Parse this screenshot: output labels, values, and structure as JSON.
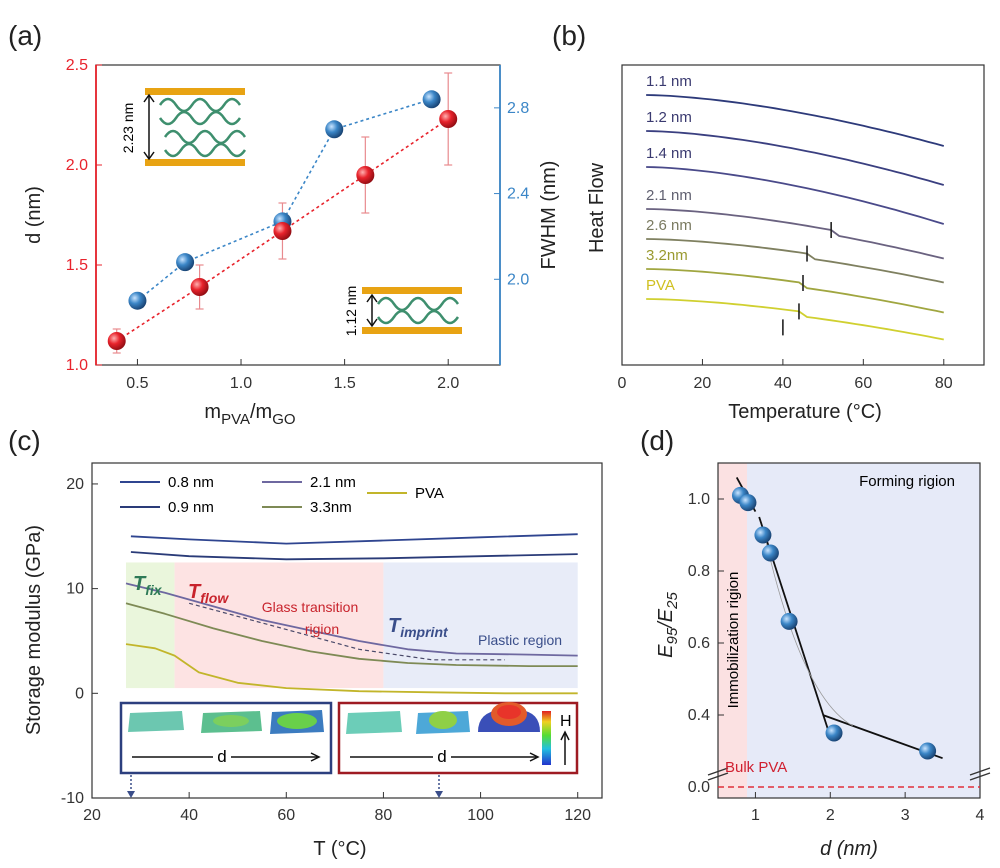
{
  "panels": {
    "a": "(a)",
    "b": "(b)",
    "c": "(c)",
    "d": "(d)"
  },
  "colors": {
    "red": "#e8232c",
    "blue": "#3b86c7",
    "gold": "#e8a313",
    "green": "#3e8f6e",
    "navy": "#2c3f7e"
  },
  "chart_data": [
    {
      "id": "a",
      "type": "scatter",
      "xlabel_main": "m",
      "xlabel_sub1": "PVA",
      "xlabel_mid": "/m",
      "xlabel_sub2": "GO",
      "ylabel_left": "d (nm)",
      "ylabel_right": "FWHM (nm)",
      "xlim": [
        0.3,
        2.25
      ],
      "ylim_left": [
        1.0,
        2.5
      ],
      "ylim_right": [
        1.6,
        3.0
      ],
      "xticks": [
        "0.5",
        "1.0",
        "1.5",
        "2.0"
      ],
      "yticks_left": [
        "1.0",
        "1.5",
        "2.0",
        "2.5"
      ],
      "yticks_right": [
        "2.0",
        "2.4",
        "2.8"
      ],
      "series": [
        {
          "axis": "left",
          "x": [
            0.4,
            0.8,
            1.2,
            1.6,
            2.0
          ],
          "y": [
            1.12,
            1.39,
            1.67,
            1.95,
            2.23
          ],
          "err": [
            0.06,
            0.11,
            0.14,
            0.19,
            0.23
          ]
        },
        {
          "axis": "right",
          "x": [
            0.5,
            0.73,
            1.2,
            1.45,
            1.92
          ],
          "y": [
            1.9,
            2.08,
            2.27,
            2.7,
            2.84
          ]
        }
      ],
      "inset_top_label": "2.23 nm",
      "inset_bottom_label": "1.12 nm"
    },
    {
      "id": "b",
      "type": "line",
      "xlabel": "Temperature (°C)",
      "ylabel": "Heat Flow",
      "xlim": [
        0,
        90
      ],
      "xticks": [
        "0",
        "20",
        "40",
        "60",
        "80"
      ],
      "curves": [
        {
          "label": "1.1 nm",
          "y_start": 0.95,
          "y_end": 0.78,
          "tg": null
        },
        {
          "label": "1.2 nm",
          "y_start": 0.83,
          "y_end": 0.65,
          "tg": null
        },
        {
          "label": "1.4 nm",
          "y_start": 0.71,
          "y_end": 0.52,
          "tg": null
        },
        {
          "label": "2.1 nm",
          "y_start": 0.57,
          "y_end": 0.42,
          "tg": 52
        },
        {
          "label": "2.6 nm",
          "y_start": 0.47,
          "y_end": 0.34,
          "tg": 46
        },
        {
          "label": "3.2nm",
          "y_start": 0.37,
          "y_end": 0.24,
          "tg": 45
        },
        {
          "label": "PVA",
          "y_start": 0.27,
          "y_end": 0.15,
          "tg": 44
        }
      ],
      "extra_tg": 40
    },
    {
      "id": "c",
      "type": "line",
      "xlabel": "T (°C)",
      "ylabel": "Storage modulus (GPa)",
      "xlim": [
        20,
        125
      ],
      "ylim": [
        -10,
        22
      ],
      "xticks": [
        "20",
        "40",
        "60",
        "80",
        "100",
        "120"
      ],
      "yticks": [
        "-10",
        "0",
        "10",
        "20"
      ],
      "legend": [
        "0.8 nm",
        "0.9 nm",
        "2.1 nm",
        "3.3nm",
        "PVA"
      ],
      "series": [
        {
          "name": "0.8 nm",
          "x": [
            28,
            40,
            60,
            80,
            100,
            120
          ],
          "y": [
            15.0,
            14.7,
            14.3,
            14.6,
            14.9,
            15.2
          ]
        },
        {
          "name": "0.9 nm",
          "x": [
            28,
            40,
            60,
            80,
            100,
            120
          ],
          "y": [
            13.5,
            13.1,
            12.8,
            12.9,
            13.1,
            13.3
          ]
        },
        {
          "name": "2.1 nm",
          "x": [
            27,
            35,
            45,
            55,
            65,
            75,
            85,
            95,
            110,
            120
          ],
          "y": [
            10.5,
            9.6,
            8.3,
            7.0,
            6.0,
            5.0,
            4.2,
            3.8,
            3.7,
            3.6
          ]
        },
        {
          "name": "3.3nm",
          "x": [
            27,
            35,
            45,
            55,
            65,
            75,
            85,
            95,
            110,
            120
          ],
          "y": [
            8.6,
            7.6,
            6.2,
            5.0,
            4.0,
            3.3,
            2.9,
            2.7,
            2.6,
            2.6
          ]
        },
        {
          "name": "PVA",
          "x": [
            27,
            33,
            37,
            42,
            50,
            60,
            75,
            90,
            105,
            120
          ],
          "y": [
            4.7,
            4.3,
            3.6,
            2.0,
            1.0,
            0.5,
            0.2,
            0.1,
            0.0,
            0.0
          ]
        }
      ],
      "annotations": {
        "tfix": "T",
        "tfix_sub": "fix",
        "tflow": "T",
        "tflow_sub": "flow",
        "glass_1": "Glass transition",
        "glass_2": "rigion",
        "timprint": "T",
        "timprint_sub": "imprint",
        "plastic": "Plastic region",
        "inset_d1": "d",
        "inset_d2": "d",
        "h_label": "H"
      },
      "regions": [
        [
          27,
          37
        ],
        [
          37,
          80
        ],
        [
          80,
          120
        ]
      ]
    },
    {
      "id": "d",
      "type": "scatter",
      "xlabel": "d (nm)",
      "ylabel_main": "E",
      "ylabel_sub1": "95",
      "ylabel_mid": "/E",
      "ylabel_sub2": "25",
      "xlim": [
        0.5,
        4
      ],
      "xticks": [
        "1",
        "2",
        "3",
        "4"
      ],
      "yticks": [
        "0.0",
        "0.4",
        "0.6",
        "0.8",
        "1.0"
      ],
      "x": [
        0.8,
        0.9,
        1.1,
        1.2,
        1.45,
        2.05,
        3.3
      ],
      "y": [
        1.01,
        0.99,
        0.9,
        0.85,
        0.66,
        0.35,
        0.3
      ],
      "region_immob": "Immobilization rigion",
      "region_forming": "Forming rigion",
      "bulk_label": "Bulk PVA"
    }
  ]
}
